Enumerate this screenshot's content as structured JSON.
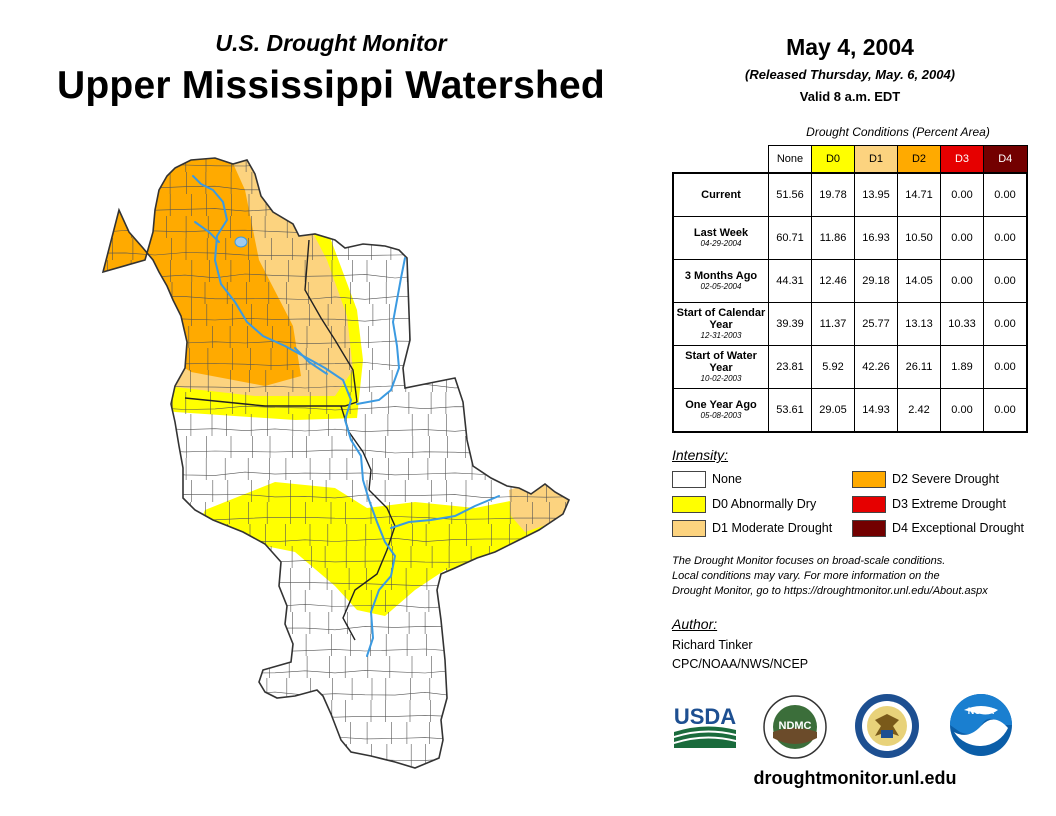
{
  "header": {
    "subtitle": "U.S. Drought Monitor",
    "title": "Upper Mississippi Watershed",
    "date": "May 4, 2004",
    "released": "(Released Thursday, May. 6, 2004)",
    "valid": "Valid 8 a.m. EDT"
  },
  "conditions": {
    "title": "Drought Conditions (Percent Area)",
    "columns": [
      "None",
      "D0",
      "D1",
      "D2",
      "D3",
      "D4"
    ],
    "rows": [
      {
        "label": "Current",
        "date": "",
        "values": [
          "51.56",
          "19.78",
          "13.95",
          "14.71",
          "0.00",
          "0.00"
        ]
      },
      {
        "label": "Last Week",
        "date": "04-29-2004",
        "values": [
          "60.71",
          "11.86",
          "16.93",
          "10.50",
          "0.00",
          "0.00"
        ]
      },
      {
        "label": "3 Months Ago",
        "date": "02-05-2004",
        "values": [
          "44.31",
          "12.46",
          "29.18",
          "14.05",
          "0.00",
          "0.00"
        ]
      },
      {
        "label": "Start of Calendar Year",
        "date": "12-31-2003",
        "values": [
          "39.39",
          "11.37",
          "25.77",
          "13.13",
          "10.33",
          "0.00"
        ]
      },
      {
        "label": "Start of Water Year",
        "date": "10-02-2003",
        "values": [
          "23.81",
          "5.92",
          "42.26",
          "26.11",
          "1.89",
          "0.00"
        ]
      },
      {
        "label": "One Year Ago",
        "date": "05-08-2003",
        "values": [
          "53.61",
          "29.05",
          "14.93",
          "2.42",
          "0.00",
          "0.00"
        ]
      }
    ]
  },
  "legend": {
    "title": "Intensity:",
    "items": [
      {
        "label": "None",
        "color": "#ffffff"
      },
      {
        "label": "D0 Abnormally Dry",
        "color": "#ffff00"
      },
      {
        "label": "D1 Moderate Drought",
        "color": "#fcd37f"
      },
      {
        "label": "D2 Severe Drought",
        "color": "#ffaa00"
      },
      {
        "label": "D3 Extreme Drought",
        "color": "#e60000"
      },
      {
        "label": "D4 Exceptional Drought",
        "color": "#730000"
      }
    ]
  },
  "note": {
    "line1": "The Drought Monitor focuses on broad-scale conditions.",
    "line2": "Local conditions may vary. For more information on the",
    "line3": "Drought Monitor, go to https://droughtmonitor.unl.edu/About.aspx"
  },
  "author": {
    "title": "Author:",
    "name": "Richard Tinker",
    "org": "CPC/NOAA/NWS/NCEP"
  },
  "logos": {
    "usda": "USDA",
    "ndmc": "NDMC",
    "noaa": "NOAA"
  },
  "footer": {
    "website": "droughtmonitor.unl.edu"
  },
  "colors": {
    "river": "#3b9ae1",
    "border": "#555555"
  }
}
